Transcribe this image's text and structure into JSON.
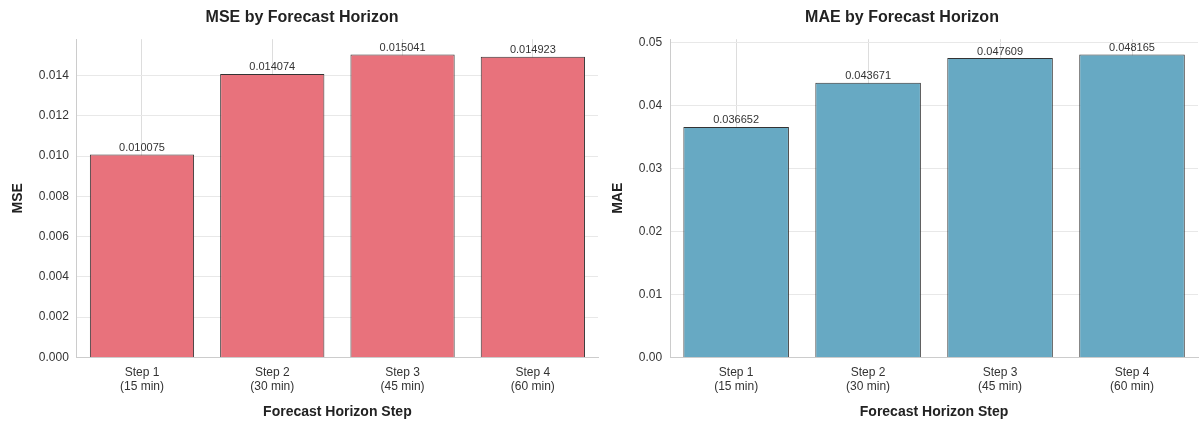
{
  "chart_data": [
    {
      "type": "bar",
      "title": "MSE by Forecast Horizon",
      "xlabel": "Forecast Horizon Step",
      "ylabel": "MSE",
      "categories": [
        "Step 1\n(15 min)",
        "Step 2\n(30 min)",
        "Step 3\n(45 min)",
        "Step 4\n(60 min)"
      ],
      "values": [
        0.010075,
        0.014074,
        0.015041,
        0.014923
      ],
      "color": "#e8727c",
      "ylim": [
        0,
        0.0158
      ],
      "yticks": [
        {
          "value": 0,
          "label": "0.000"
        },
        {
          "value": 0.002,
          "label": "0.002"
        },
        {
          "value": 0.004,
          "label": "0.004"
        },
        {
          "value": 0.006,
          "label": "0.006"
        },
        {
          "value": 0.008,
          "label": "0.008"
        },
        {
          "value": 0.01,
          "label": "0.010"
        },
        {
          "value": 0.012,
          "label": "0.012"
        },
        {
          "value": 0.014,
          "label": "0.014"
        }
      ],
      "grid": true,
      "data_labels": true
    },
    {
      "type": "bar",
      "title": "MAE by Forecast Horizon",
      "xlabel": "Forecast Horizon Step",
      "ylabel": "MAE",
      "categories": [
        "Step 1\n(15 min)",
        "Step 2\n(30 min)",
        "Step 3\n(45 min)",
        "Step 4\n(60 min)"
      ],
      "values": [
        0.036652,
        0.043671,
        0.047609,
        0.048165
      ],
      "color": "#67a9c3",
      "ylim": [
        0,
        0.0506
      ],
      "yticks": [
        {
          "value": 0,
          "label": "0.00"
        },
        {
          "value": 0.01,
          "label": "0.01"
        },
        {
          "value": 0.02,
          "label": "0.02"
        },
        {
          "value": 0.03,
          "label": "0.03"
        },
        {
          "value": 0.04,
          "label": "0.04"
        },
        {
          "value": 0.05,
          "label": "0.05"
        }
      ],
      "grid": true,
      "data_labels": true
    }
  ]
}
